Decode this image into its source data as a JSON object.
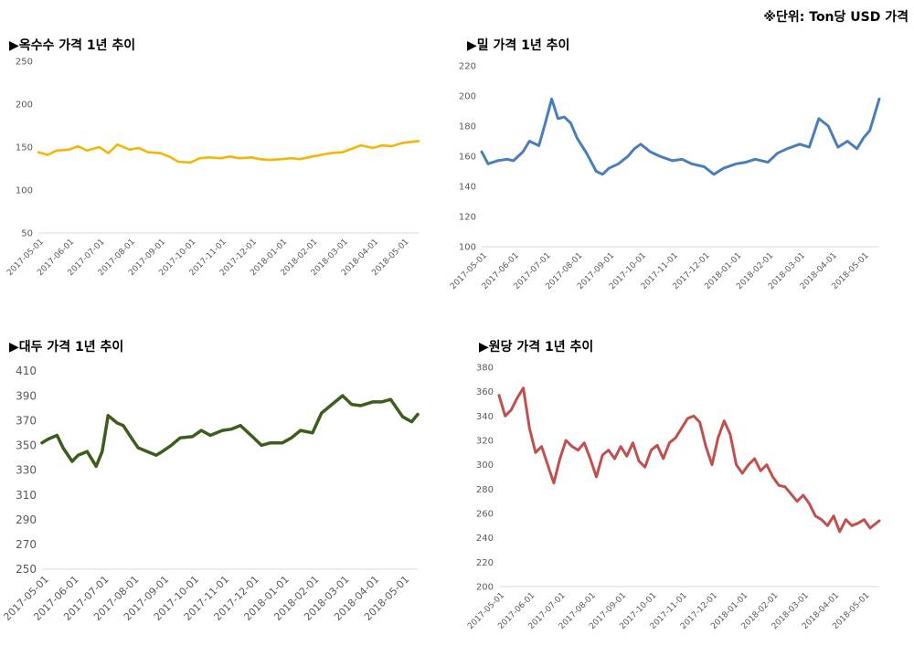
{
  "unit_note": "※단위: Ton당 USD 가격",
  "chart_data": [
    {
      "id": "corn",
      "type": "line",
      "title": "▶옥수수 가격 1년 추이",
      "color": "#f2b705",
      "ylim": [
        50,
        250
      ],
      "yticks": [
        50,
        100,
        150,
        200,
        250
      ],
      "xlabels": [
        "2017-05-01",
        "2017-06-01",
        "2017-07-01",
        "2017-08-01",
        "2017-09-01",
        "2017-10-01",
        "2017-11-01",
        "2017-12-01",
        "2018-01-01",
        "2018-02-01",
        "2018-03-01",
        "2018-04-01",
        "2018-05-01"
      ],
      "series": [
        {
          "x": [
            0,
            0.3,
            0.6,
            1.0,
            1.3,
            1.6,
            2.0,
            2.3,
            2.6,
            3.0,
            3.3,
            3.6,
            4.0,
            4.3,
            4.6,
            5.0,
            5.3,
            5.6,
            6.0,
            6.3,
            6.6,
            7.0,
            7.3,
            7.6,
            8.0,
            8.3,
            8.6,
            9.0,
            9.3,
            9.6,
            10.0,
            10.3,
            10.6,
            11.0,
            11.3,
            11.6,
            12.0,
            12.5
          ],
          "y": [
            144,
            141,
            146,
            147,
            151,
            146,
            150,
            143,
            153,
            147,
            149,
            144,
            143,
            139,
            133,
            132,
            137,
            138,
            137,
            139,
            137,
            138,
            136,
            135,
            136,
            137,
            136,
            139,
            141,
            143,
            144,
            148,
            152,
            149,
            152,
            151,
            155,
            157
          ]
        }
      ]
    },
    {
      "id": "wheat",
      "type": "line",
      "title": "▶밀 가격 1년 추이",
      "color": "#4a7ebb",
      "ylim": [
        100,
        220
      ],
      "yticks": [
        100,
        120,
        140,
        160,
        180,
        200,
        220
      ],
      "xlabels": [
        "2017-05-01",
        "2017-06-01",
        "2017-07-01",
        "2017-08-01",
        "2017-09-01",
        "2017-10-01",
        "2017-11-01",
        "2017-12-01",
        "2018-01-01",
        "2018-02-01",
        "2018-03-01",
        "2018-04-01",
        "2018-05-01"
      ],
      "series": [
        {
          "x": [
            0,
            0.2,
            0.5,
            0.8,
            1.0,
            1.3,
            1.5,
            1.8,
            2.0,
            2.2,
            2.4,
            2.6,
            2.8,
            3.0,
            3.3,
            3.6,
            3.8,
            4.0,
            4.3,
            4.6,
            4.8,
            5.0,
            5.3,
            5.6,
            6.0,
            6.3,
            6.6,
            7.0,
            7.3,
            7.6,
            8.0,
            8.3,
            8.6,
            9.0,
            9.3,
            9.6,
            10.0,
            10.3,
            10.6,
            10.9,
            11.2,
            11.5,
            11.8,
            12.0,
            12.2,
            12.5
          ],
          "y": [
            163,
            155,
            157,
            158,
            157,
            163,
            170,
            167,
            182,
            198,
            185,
            186,
            182,
            172,
            162,
            150,
            148,
            152,
            155,
            160,
            165,
            168,
            163,
            160,
            157,
            158,
            155,
            153,
            148,
            152,
            155,
            156,
            158,
            156,
            162,
            165,
            168,
            166,
            185,
            180,
            166,
            170,
            165,
            172,
            177,
            198
          ]
        }
      ]
    },
    {
      "id": "soybean",
      "type": "line",
      "title": "▶대두 가격 1년 추이",
      "color": "#3e5c1b",
      "ylim": [
        250,
        410
      ],
      "yticks": [
        250,
        270,
        290,
        310,
        330,
        350,
        370,
        390,
        410
      ],
      "xlabels": [
        "2017-05-01",
        "2017-06-01",
        "2017-07-01",
        "2017-08-01",
        "2017-09-01",
        "2017-10-01",
        "2017-11-01",
        "2017-12-01",
        "2018-01-01",
        "2018-02-01",
        "2018-03-01",
        "2018-04-01",
        "2018-05-01"
      ],
      "series": [
        {
          "x": [
            0,
            0.2,
            0.5,
            0.7,
            1.0,
            1.2,
            1.5,
            1.8,
            2.0,
            2.2,
            2.5,
            2.7,
            3.0,
            3.2,
            3.5,
            3.8,
            4.0,
            4.3,
            4.6,
            5.0,
            5.3,
            5.6,
            6.0,
            6.3,
            6.6,
            7.0,
            7.3,
            7.6,
            8.0,
            8.3,
            8.6,
            9.0,
            9.3,
            9.6,
            10.0,
            10.3,
            10.6,
            11.0,
            11.3,
            11.6,
            12.0,
            12.3,
            12.5
          ],
          "y": [
            352,
            355,
            358,
            348,
            337,
            342,
            345,
            333,
            345,
            374,
            368,
            366,
            355,
            348,
            345,
            342,
            345,
            350,
            356,
            357,
            362,
            358,
            362,
            363,
            366,
            357,
            350,
            352,
            352,
            356,
            362,
            360,
            376,
            382,
            390,
            383,
            382,
            385,
            385,
            387,
            373,
            369,
            375
          ]
        }
      ]
    },
    {
      "id": "sugar",
      "type": "line",
      "title": "▶원당 가격 1년 추이",
      "color": "#c0504d",
      "ylim": [
        200,
        380
      ],
      "yticks": [
        200,
        220,
        240,
        260,
        280,
        300,
        320,
        340,
        360,
        380
      ],
      "xlabels": [
        "2017-05-01",
        "2017-06-01",
        "2017-07-01",
        "2017-08-01",
        "2017-09-01",
        "2017-10-01",
        "2017-11-01",
        "2017-12-01",
        "2018-01-01",
        "2018-02-01",
        "2018-03-01",
        "2018-04-01",
        "2018-05-01"
      ],
      "series": [
        {
          "x": [
            0,
            0.2,
            0.4,
            0.6,
            0.8,
            1.0,
            1.2,
            1.4,
            1.6,
            1.8,
            2.0,
            2.2,
            2.4,
            2.6,
            2.8,
            3.0,
            3.2,
            3.4,
            3.6,
            3.8,
            4.0,
            4.2,
            4.4,
            4.6,
            4.8,
            5.0,
            5.2,
            5.4,
            5.6,
            5.8,
            6.0,
            6.2,
            6.4,
            6.6,
            6.8,
            7.0,
            7.2,
            7.4,
            7.6,
            7.8,
            8.0,
            8.2,
            8.4,
            8.6,
            8.8,
            9.0,
            9.2,
            9.4,
            9.6,
            9.8,
            10.0,
            10.2,
            10.4,
            10.6,
            10.8,
            11.0,
            11.2,
            11.4,
            11.6,
            11.8,
            12.0,
            12.2,
            12.5
          ],
          "y": [
            357,
            340,
            345,
            355,
            363,
            330,
            310,
            315,
            300,
            285,
            305,
            320,
            315,
            312,
            318,
            305,
            290,
            308,
            312,
            305,
            315,
            307,
            318,
            303,
            298,
            312,
            316,
            305,
            318,
            322,
            330,
            338,
            340,
            335,
            315,
            300,
            322,
            336,
            325,
            300,
            293,
            300,
            305,
            295,
            300,
            290,
            283,
            282,
            276,
            270,
            275,
            268,
            258,
            255,
            250,
            258,
            245,
            255,
            250,
            252,
            255,
            248,
            254
          ]
        }
      ]
    }
  ]
}
